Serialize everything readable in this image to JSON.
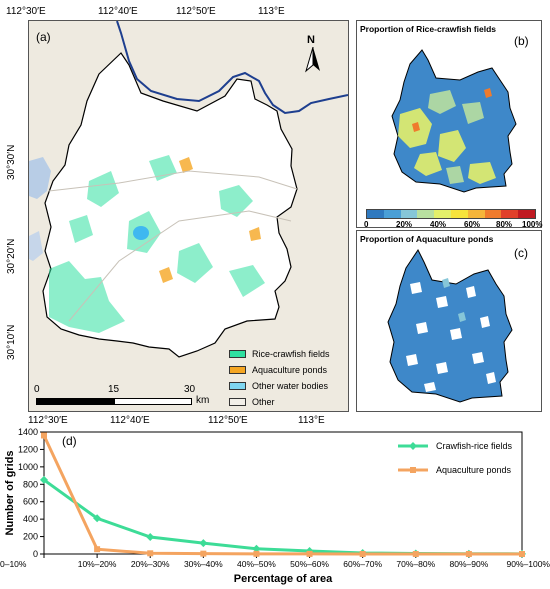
{
  "main_map": {
    "panel_label": "(a)",
    "top_ticks": [
      "112°30′E",
      "112°40′E",
      "112°50′E",
      "113°E"
    ],
    "bottom_ticks": [
      "112°30′E",
      "112°40′E",
      "112°50′E",
      "113°E"
    ],
    "left_ticks": [
      "30°30′N",
      "30°20′N",
      "30°10′N"
    ],
    "north_label": "N",
    "scale_labels": [
      "0",
      "15",
      "30"
    ],
    "scale_unit": "km",
    "legend": [
      {
        "label": "Rice-crawfish fields",
        "color": "#2fe0a0"
      },
      {
        "label": "Aquaculture ponds",
        "color": "#f5a623"
      },
      {
        "label": "Other water bodies",
        "color": "#7fd6f0"
      },
      {
        "label": "Other",
        "color": "#f2efe8"
      }
    ],
    "colors": {
      "river": "#1e3f8f",
      "boundary": "#000000",
      "background": "#eeeae0",
      "lake": "#b8cde6"
    }
  },
  "panel_b": {
    "title": "Proportion of Rice-crawfish fields",
    "label": "(b)",
    "colorbar_ticks": [
      "0",
      "20%",
      "40%",
      "60%",
      "80%",
      "100%"
    ],
    "colorbar_colors": [
      "#2f79bf",
      "#4a9fd6",
      "#86c6d8",
      "#b8dfa0",
      "#e3ef6a",
      "#f7e33c",
      "#f5b53a",
      "#ef7b2d",
      "#e0402a",
      "#c01a22"
    ]
  },
  "panel_c": {
    "title": "Proportion of Aquaculture ponds",
    "label": "(c)"
  },
  "chart": {
    "label": "(d)",
    "chart_data": {
      "type": "line",
      "categories": [
        "0–10%",
        "10%–20%",
        "20%–30%",
        "30%–40%",
        "40%–50%",
        "50%–60%",
        "60%–70%",
        "70%–80%",
        "80%–90%",
        "90%–100%"
      ],
      "series": [
        {
          "name": "Crawfish-rice fields",
          "color": "#3ddc97",
          "marker": "diamond",
          "values": [
            850,
            410,
            195,
            125,
            60,
            35,
            12,
            6,
            3,
            2
          ]
        },
        {
          "name": "Aquaculture ponds",
          "color": "#f4a460",
          "marker": "square",
          "values": [
            1360,
            55,
            8,
            4,
            2,
            1,
            0,
            0,
            0,
            0
          ]
        }
      ],
      "xlabel": "Percentage of area",
      "ylabel": "Number of grids",
      "ylim": [
        0,
        1400
      ],
      "yticks": [
        0,
        200,
        400,
        600,
        800,
        1000,
        1200,
        1400
      ],
      "legend_position": "top-right"
    }
  }
}
